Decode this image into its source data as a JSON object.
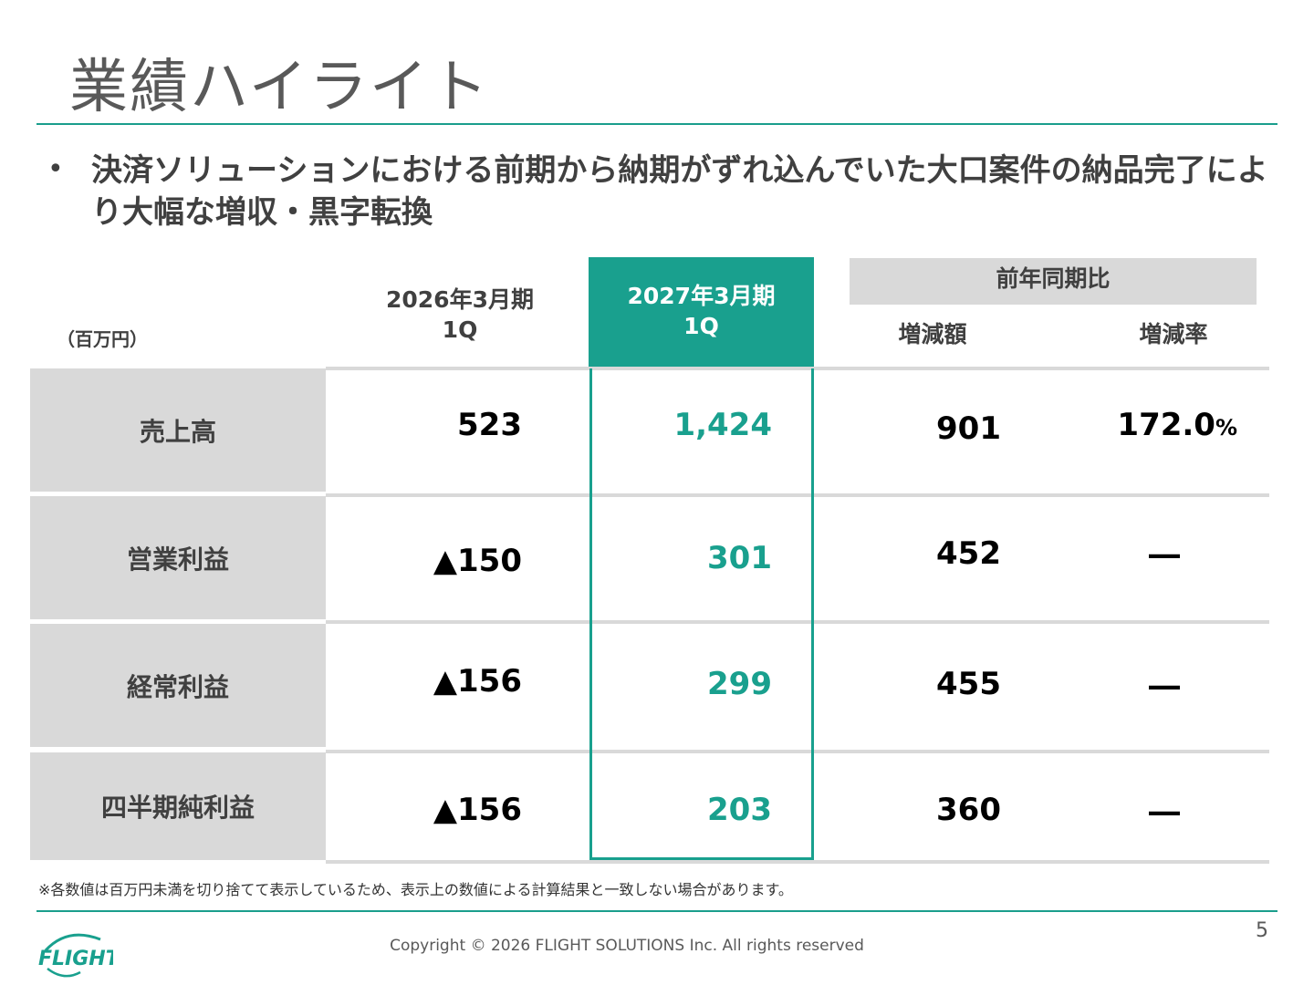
{
  "slide": {
    "title": "業績ハイライト",
    "bullet": "決済ソリューションにおける前期から納期がずれ込んでいた大口案件の納品完了により大幅な増収・黒字転換",
    "unit": "（百万円）"
  },
  "table": {
    "col_prev_line1": "2026年3月期",
    "col_prev_line2": "1Q",
    "col_curr_line1": "2027年3月期",
    "col_curr_line2": "1Q",
    "yoy_header": "前年同期比",
    "col_diff": "増減額",
    "col_rate": "増減率",
    "rows": [
      {
        "label": "売上高",
        "prev": "523",
        "curr": "1,424",
        "diff": "901",
        "rate": "172.0",
        "rate_unit": "%"
      },
      {
        "label": "営業利益",
        "prev": "▲150",
        "curr": "301",
        "diff": "452",
        "rate": "―"
      },
      {
        "label": "経常利益",
        "prev": "▲156",
        "curr": "299",
        "diff": "455",
        "rate": "―"
      },
      {
        "label": "四半期純利益",
        "prev": "▲156",
        "curr": "203",
        "diff": "360",
        "rate": "―"
      }
    ]
  },
  "footer": {
    "note": "※各数値は百万円未満を切り捨てて表示しているため、表示上の数値による計算結果と一致しない場合があります。",
    "copyright": "Copyright ©  2026 FLIGHT SOLUTIONS Inc. All rights reserved",
    "page_number": "5",
    "logo_text": "FLIGHT"
  },
  "colors": {
    "accent": "#19a08e",
    "label_bg": "#d9d9d9",
    "text_gray": "#404040"
  }
}
